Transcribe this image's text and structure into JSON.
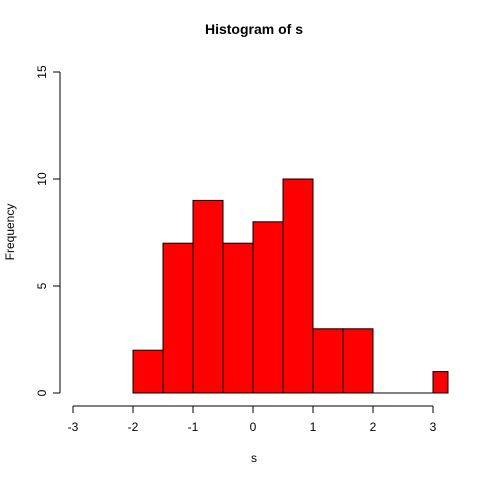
{
  "chart_data": {
    "type": "bar",
    "title": "Histogram of s",
    "xlabel": "s",
    "ylabel": "Frequency",
    "bar_color": "#ff0000",
    "border_color": "#000000",
    "grid": false,
    "xlim": [
      -3,
      3.25
    ],
    "ylim": [
      0,
      15
    ],
    "x_ticks": [
      -3,
      -2,
      -1,
      0,
      1,
      2,
      3
    ],
    "y_ticks": [
      0,
      5,
      10,
      15
    ],
    "bins": [
      {
        "start": -2.0,
        "end": -1.5,
        "count": 2
      },
      {
        "start": -1.5,
        "end": -1.0,
        "count": 7
      },
      {
        "start": -1.0,
        "end": -0.5,
        "count": 9
      },
      {
        "start": -0.5,
        "end": 0.0,
        "count": 7
      },
      {
        "start": 0.0,
        "end": 0.5,
        "count": 8
      },
      {
        "start": 0.5,
        "end": 1.0,
        "count": 10
      },
      {
        "start": 1.0,
        "end": 1.5,
        "count": 3
      },
      {
        "start": 1.5,
        "end": 2.0,
        "count": 3
      },
      {
        "start": 2.0,
        "end": 2.5,
        "count": 0
      },
      {
        "start": 2.5,
        "end": 3.0,
        "count": 0
      },
      {
        "start": 3.0,
        "end": 3.25,
        "count": 1
      }
    ]
  }
}
